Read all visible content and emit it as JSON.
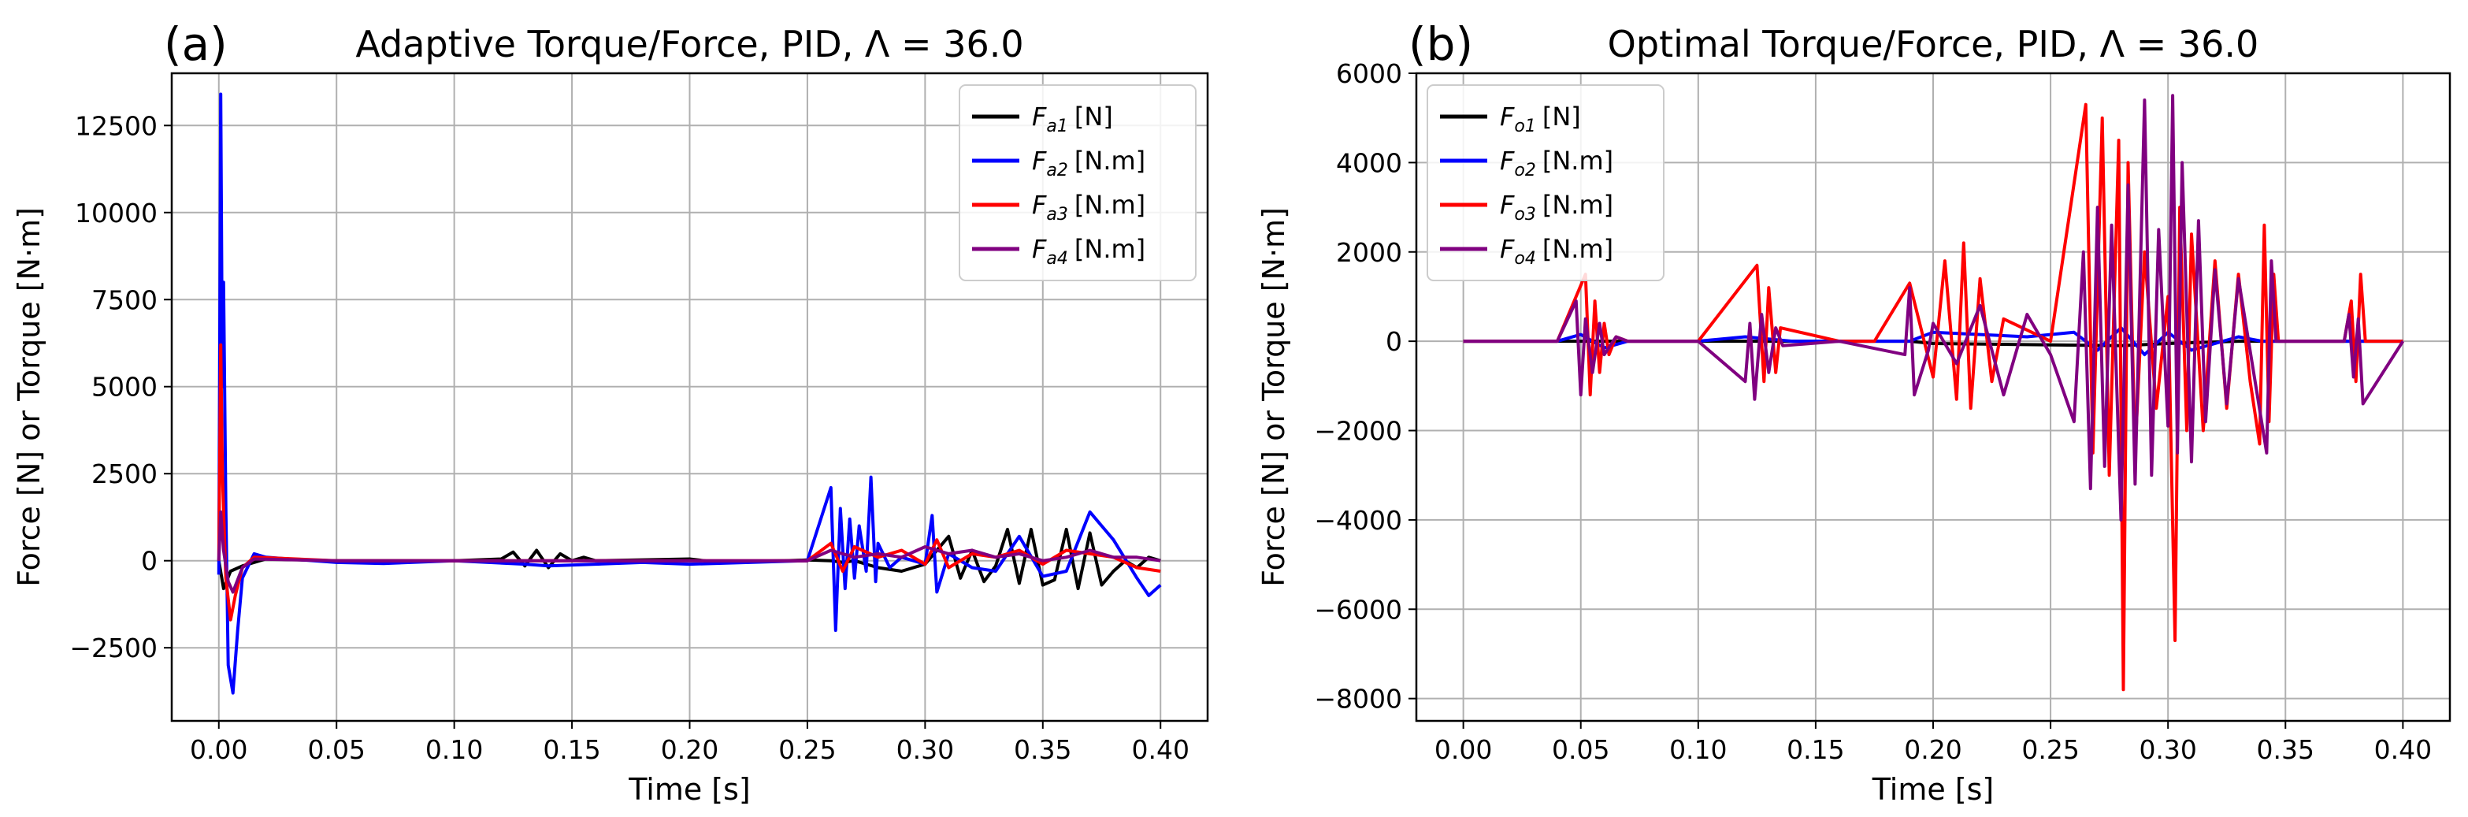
{
  "chart_data": [
    {
      "type": "line",
      "panel_label": "(a)",
      "title": "Adaptive Torque/Force, PID, Λ = 36.0",
      "xlabel": "Time [s]",
      "ylabel": "Force  [N] or Torque [N·m]",
      "xlim": [
        -0.02,
        0.42
      ],
      "ylim": [
        -4600,
        14000
      ],
      "xticks": [
        0.0,
        0.05,
        0.1,
        0.15,
        0.2,
        0.25,
        0.3,
        0.35,
        0.4
      ],
      "xtick_labels": [
        "0.00",
        "0.05",
        "0.10",
        "0.15",
        "0.20",
        "0.25",
        "0.30",
        "0.35",
        "0.40"
      ],
      "yticks": [
        -2500,
        0,
        2500,
        5000,
        7500,
        10000,
        12500
      ],
      "ytick_labels": [
        "−2500",
        "0",
        "2500",
        "5000",
        "7500",
        "10000",
        "12500"
      ],
      "grid": true,
      "legend_position": "top-right",
      "series": [
        {
          "name": "F_a1 [N]",
          "label_main": "F",
          "label_sub": "a1",
          "label_unit": "[N]",
          "color": "#000000",
          "x": [
            0,
            0.002,
            0.005,
            0.01,
            0.02,
            0.05,
            0.1,
            0.12,
            0.125,
            0.13,
            0.135,
            0.14,
            0.145,
            0.15,
            0.155,
            0.16,
            0.2,
            0.21,
            0.24,
            0.25,
            0.26,
            0.265,
            0.27,
            0.28,
            0.29,
            0.3,
            0.31,
            0.315,
            0.32,
            0.325,
            0.33,
            0.335,
            0.34,
            0.345,
            0.35,
            0.355,
            0.36,
            0.365,
            0.37,
            0.375,
            0.38,
            0.385,
            0.39,
            0.395,
            0.4
          ],
          "y": [
            0,
            -800,
            -300,
            -150,
            50,
            0,
            0,
            50,
            250,
            -150,
            300,
            -200,
            200,
            0,
            100,
            0,
            50,
            -30,
            0,
            20,
            0,
            -50,
            0,
            -200,
            -300,
            -100,
            700,
            -500,
            300,
            -600,
            -150,
            900,
            -650,
            900,
            -700,
            -550,
            900,
            -800,
            800,
            -700,
            -300,
            0,
            -200,
            100,
            0
          ]
        },
        {
          "name": "F_a2 [N.m]",
          "label_main": "F",
          "label_sub": "a2",
          "label_unit": "[N.m]",
          "color": "#0000ff",
          "x": [
            0,
            0.0008,
            0.0015,
            0.002,
            0.003,
            0.004,
            0.006,
            0.008,
            0.01,
            0.015,
            0.02,
            0.05,
            0.07,
            0.1,
            0.13,
            0.14,
            0.18,
            0.2,
            0.25,
            0.26,
            0.262,
            0.264,
            0.266,
            0.268,
            0.27,
            0.272,
            0.275,
            0.277,
            0.279,
            0.28,
            0.285,
            0.29,
            0.3,
            0.303,
            0.305,
            0.31,
            0.32,
            0.33,
            0.34,
            0.35,
            0.36,
            0.37,
            0.38,
            0.39,
            0.395,
            0.4
          ],
          "y": [
            -400,
            13400,
            5000,
            8000,
            1500,
            -3000,
            -3800,
            -2000,
            -500,
            200,
            100,
            -50,
            -80,
            0,
            -100,
            -150,
            -50,
            -100,
            0,
            2100,
            -2000,
            1500,
            -800,
            1200,
            -500,
            1000,
            -300,
            2400,
            -600,
            500,
            -200,
            100,
            -100,
            1300,
            -900,
            200,
            -200,
            -300,
            700,
            -450,
            -300,
            1400,
            600,
            -500,
            -1000,
            -700
          ]
        },
        {
          "name": "F_a3 [N.m]",
          "label_main": "F",
          "label_sub": "a3",
          "label_unit": "[N.m]",
          "color": "#ff0000",
          "x": [
            0,
            0.0008,
            0.0015,
            0.003,
            0.005,
            0.007,
            0.01,
            0.015,
            0.05,
            0.1,
            0.15,
            0.2,
            0.25,
            0.26,
            0.265,
            0.27,
            0.28,
            0.29,
            0.3,
            0.305,
            0.31,
            0.32,
            0.33,
            0.34,
            0.35,
            0.36,
            0.37,
            0.38,
            0.39,
            0.4
          ],
          "y": [
            0,
            6200,
            2500,
            -500,
            -1700,
            -1000,
            -200,
            100,
            0,
            0,
            0,
            0,
            0,
            500,
            -300,
            400,
            100,
            300,
            -100,
            600,
            -200,
            200,
            100,
            300,
            -100,
            300,
            200,
            100,
            -200,
            -300
          ]
        },
        {
          "name": "F_a4 [N.m]",
          "label_main": "F",
          "label_sub": "a4",
          "label_unit": "[N.m]",
          "color": "#800080",
          "x": [
            0,
            0.0008,
            0.002,
            0.004,
            0.006,
            0.01,
            0.015,
            0.05,
            0.1,
            0.15,
            0.2,
            0.25,
            0.26,
            0.27,
            0.28,
            0.29,
            0.3,
            0.31,
            0.32,
            0.33,
            0.34,
            0.35,
            0.36,
            0.37,
            0.38,
            0.39,
            0.4
          ],
          "y": [
            0,
            1400,
            300,
            -600,
            -900,
            -200,
            50,
            0,
            0,
            0,
            0,
            0,
            300,
            100,
            200,
            100,
            400,
            200,
            300,
            100,
            200,
            0,
            100,
            300,
            100,
            100,
            0
          ]
        }
      ]
    },
    {
      "type": "line",
      "panel_label": "(b)",
      "title": "Optimal Torque/Force, PID, Λ = 36.0",
      "xlabel": "Time [s]",
      "ylabel": "Force  [N] or Torque [N·m]",
      "xlim": [
        -0.02,
        0.42
      ],
      "ylim": [
        -8500,
        6000
      ],
      "xticks": [
        0.0,
        0.05,
        0.1,
        0.15,
        0.2,
        0.25,
        0.3,
        0.35,
        0.4
      ],
      "xtick_labels": [
        "0.00",
        "0.05",
        "0.10",
        "0.15",
        "0.20",
        "0.25",
        "0.30",
        "0.35",
        "0.40"
      ],
      "yticks": [
        -8000,
        -6000,
        -4000,
        -2000,
        0,
        2000,
        4000,
        6000
      ],
      "ytick_labels": [
        "−8000",
        "−6000",
        "−4000",
        "−2000",
        "0",
        "2000",
        "4000",
        "6000"
      ],
      "grid": true,
      "legend_position": "top-left",
      "series": [
        {
          "name": "F_o1 [N]",
          "label_main": "F",
          "label_sub": "o1",
          "label_unit": "[N]",
          "color": "#000000",
          "x": [
            0,
            0.19,
            0.2,
            0.25,
            0.28,
            0.3,
            0.33,
            0.35,
            0.4
          ],
          "y": [
            0,
            0,
            -50,
            -80,
            -100,
            -50,
            0,
            0,
            0
          ]
        },
        {
          "name": "F_o2 [N.m]",
          "label_main": "F",
          "label_sub": "o2",
          "label_unit": "[N.m]",
          "color": "#0000ff",
          "x": [
            0,
            0.04,
            0.05,
            0.06,
            0.07,
            0.1,
            0.12,
            0.14,
            0.19,
            0.2,
            0.22,
            0.24,
            0.26,
            0.27,
            0.28,
            0.29,
            0.3,
            0.31,
            0.33,
            0.34,
            0.4
          ],
          "y": [
            0,
            0,
            150,
            -150,
            0,
            0,
            100,
            0,
            0,
            200,
            150,
            100,
            200,
            -200,
            300,
            -300,
            200,
            -200,
            100,
            0,
            0
          ]
        },
        {
          "name": "F_o3 [N.m]",
          "label_main": "F",
          "label_sub": "o3",
          "label_unit": "[N.m]",
          "color": "#ff0000",
          "x": [
            0,
            0.04,
            0.052,
            0.054,
            0.056,
            0.058,
            0.06,
            0.062,
            0.065,
            0.07,
            0.1,
            0.125,
            0.128,
            0.13,
            0.133,
            0.135,
            0.16,
            0.175,
            0.19,
            0.2,
            0.205,
            0.21,
            0.213,
            0.216,
            0.22,
            0.225,
            0.23,
            0.25,
            0.265,
            0.268,
            0.272,
            0.275,
            0.279,
            0.281,
            0.283,
            0.286,
            0.29,
            0.295,
            0.3,
            0.303,
            0.305,
            0.308,
            0.31,
            0.315,
            0.32,
            0.325,
            0.33,
            0.335,
            0.339,
            0.341,
            0.343,
            0.345,
            0.347,
            0.375,
            0.378,
            0.38,
            0.382,
            0.384,
            0.4
          ],
          "y": [
            0,
            0,
            1500,
            -1200,
            900,
            -700,
            400,
            -300,
            100,
            0,
            0,
            1700,
            -900,
            1200,
            -700,
            300,
            0,
            0,
            1300,
            -800,
            1800,
            -1300,
            2200,
            -1500,
            1400,
            -900,
            500,
            0,
            5300,
            -2500,
            5000,
            -3000,
            4500,
            -7800,
            4000,
            -2500,
            2000,
            -1500,
            1000,
            -6700,
            3000,
            -2000,
            2400,
            -2000,
            1800,
            -1500,
            1500,
            -900,
            -2300,
            2600,
            -1800,
            1500,
            0,
            0,
            900,
            -900,
            1500,
            0,
            0
          ]
        },
        {
          "name": "F_o4 [N.m]",
          "label_main": "F",
          "label_sub": "o4",
          "label_unit": "[N.m]",
          "color": "#800080",
          "x": [
            0,
            0.04,
            0.048,
            0.05,
            0.052,
            0.055,
            0.058,
            0.06,
            0.065,
            0.07,
            0.1,
            0.12,
            0.122,
            0.124,
            0.127,
            0.13,
            0.133,
            0.136,
            0.16,
            0.188,
            0.19,
            0.192,
            0.198,
            0.2,
            0.21,
            0.22,
            0.23,
            0.24,
            0.25,
            0.26,
            0.264,
            0.267,
            0.27,
            0.273,
            0.276,
            0.28,
            0.283,
            0.286,
            0.29,
            0.293,
            0.296,
            0.3,
            0.302,
            0.304,
            0.306,
            0.31,
            0.313,
            0.316,
            0.32,
            0.325,
            0.33,
            0.338,
            0.342,
            0.344,
            0.346,
            0.375,
            0.377,
            0.379,
            0.381,
            0.383,
            0.4
          ],
          "y": [
            0,
            0,
            900,
            -1200,
            500,
            -700,
            400,
            -300,
            100,
            0,
            0,
            -900,
            400,
            -1300,
            600,
            -700,
            300,
            -100,
            0,
            -300,
            1200,
            -1200,
            -200,
            400,
            -500,
            800,
            -1200,
            600,
            -300,
            -1800,
            2000,
            -3300,
            3000,
            -2800,
            2600,
            -4000,
            3500,
            -3200,
            5400,
            -3000,
            2500,
            -1900,
            5500,
            -2500,
            4000,
            -2700,
            2700,
            -1800,
            1600,
            -1400,
            1400,
            -1200,
            -2500,
            1800,
            0,
            0,
            600,
            -800,
            500,
            -1400,
            0
          ]
        }
      ]
    }
  ]
}
